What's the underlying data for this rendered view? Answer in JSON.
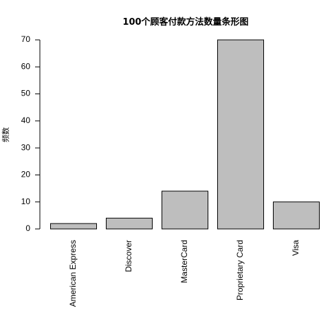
{
  "chart_data": {
    "type": "bar",
    "title": "100个顾客付款方法数量条形图",
    "xlabel": "",
    "ylabel": "频数",
    "categories": [
      "American Express",
      "Discover",
      "MasterCard",
      "Proprietary Card",
      "Visa"
    ],
    "values": [
      2,
      4,
      14,
      70,
      10
    ],
    "ylim": [
      0,
      70
    ],
    "yticks": [
      "0",
      "10",
      "20",
      "30",
      "40",
      "50",
      "60",
      "70"
    ],
    "bar_color": "#bebebe",
    "bar_border": "#000000",
    "grid": false,
    "legend": "none"
  }
}
